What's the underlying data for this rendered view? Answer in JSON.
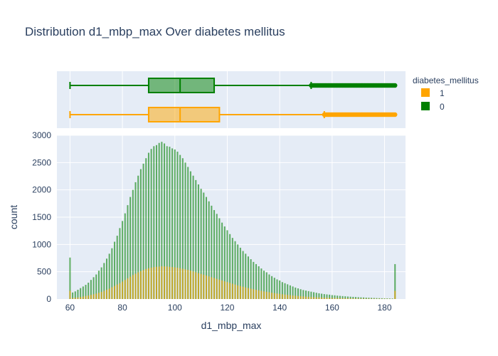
{
  "title": "Distribution d1_mbp_max Over diabetes mellitus",
  "legend": {
    "title": "diabetes_mellitus",
    "items": [
      {
        "label": "1",
        "color": "#FFA500"
      },
      {
        "label": "0",
        "color": "#008000"
      }
    ]
  },
  "chart_data": [
    {
      "type": "box",
      "orientation": "horizontal",
      "series": [
        {
          "name": "0",
          "color": "#008000",
          "whisker_low": 60,
          "q1": 90,
          "median": 102,
          "q3": 115,
          "whisker_high": 152,
          "outliers_range": [
            152,
            184
          ]
        },
        {
          "name": "1",
          "color": "#FFA500",
          "whisker_low": 60,
          "q1": 90,
          "median": 102,
          "q3": 117,
          "whisker_high": 157,
          "outliers_range": [
            157,
            184
          ]
        }
      ],
      "xlim": [
        55,
        188
      ]
    },
    {
      "type": "bar",
      "mode": "overlay",
      "xlabel": "d1_mbp_max",
      "ylabel": "count",
      "xlim": [
        55,
        188
      ],
      "ylim": [
        0,
        3000
      ],
      "xticks": [
        60,
        80,
        100,
        120,
        140,
        160,
        180
      ],
      "yticks": [
        0,
        500,
        1000,
        1500,
        2000,
        2500,
        3000
      ],
      "grid": true,
      "x": [
        60,
        61,
        62,
        63,
        64,
        65,
        66,
        67,
        68,
        69,
        70,
        71,
        72,
        73,
        74,
        75,
        76,
        77,
        78,
        79,
        80,
        81,
        82,
        83,
        84,
        85,
        86,
        87,
        88,
        89,
        90,
        91,
        92,
        93,
        94,
        95,
        96,
        97,
        98,
        99,
        100,
        101,
        102,
        103,
        104,
        105,
        106,
        107,
        108,
        109,
        110,
        111,
        112,
        113,
        114,
        115,
        116,
        117,
        118,
        119,
        120,
        121,
        122,
        123,
        124,
        125,
        126,
        127,
        128,
        129,
        130,
        131,
        132,
        133,
        134,
        135,
        136,
        137,
        138,
        139,
        140,
        141,
        142,
        143,
        144,
        145,
        146,
        147,
        148,
        149,
        150,
        151,
        152,
        153,
        154,
        155,
        156,
        157,
        158,
        159,
        160,
        161,
        162,
        163,
        164,
        165,
        166,
        167,
        168,
        169,
        170,
        171,
        172,
        173,
        174,
        175,
        176,
        177,
        178,
        179,
        180,
        181,
        182,
        183,
        184
      ],
      "series": [
        {
          "name": "0",
          "color": "#008000",
          "values": [
            760,
            120,
            140,
            170,
            200,
            230,
            260,
            300,
            350,
            400,
            450,
            520,
            580,
            660,
            740,
            830,
            930,
            1050,
            1160,
            1300,
            1430,
            1570,
            1720,
            1870,
            2000,
            2140,
            2260,
            2380,
            2480,
            2580,
            2680,
            2750,
            2800,
            2820,
            2860,
            2880,
            2850,
            2800,
            2790,
            2760,
            2740,
            2700,
            2640,
            2580,
            2500,
            2420,
            2340,
            2260,
            2180,
            2100,
            2020,
            1950,
            1870,
            1790,
            1710,
            1630,
            1560,
            1480,
            1400,
            1330,
            1260,
            1190,
            1120,
            1060,
            1000,
            940,
            880,
            830,
            780,
            730,
            680,
            640,
            600,
            560,
            520,
            490,
            450,
            420,
            390,
            360,
            340,
            310,
            290,
            270,
            250,
            230,
            210,
            195,
            180,
            165,
            155,
            145,
            135,
            125,
            115,
            105,
            98,
            90,
            85,
            80,
            72,
            68,
            62,
            58,
            54,
            50,
            46,
            43,
            40,
            37,
            34,
            31,
            29,
            26,
            24,
            22,
            20,
            18,
            16,
            15,
            14,
            12,
            11,
            10,
            640
          ]
        },
        {
          "name": "1",
          "color": "#FFA500",
          "values": [
            150,
            20,
            25,
            30,
            38,
            45,
            55,
            65,
            75,
            88,
            100,
            115,
            130,
            150,
            170,
            190,
            215,
            240,
            265,
            290,
            320,
            350,
            380,
            410,
            440,
            465,
            490,
            510,
            530,
            550,
            565,
            575,
            585,
            590,
            595,
            600,
            598,
            595,
            590,
            585,
            580,
            575,
            565,
            555,
            545,
            535,
            520,
            505,
            490,
            475,
            460,
            445,
            430,
            415,
            400,
            385,
            370,
            355,
            340,
            325,
            310,
            295,
            280,
            265,
            250,
            238,
            225,
            212,
            200,
            190,
            180,
            170,
            160,
            150,
            140,
            132,
            124,
            116,
            108,
            100,
            94,
            88,
            82,
            76,
            70,
            65,
            60,
            56,
            52,
            48,
            44,
            41,
            38,
            35,
            32,
            30,
            28,
            26,
            24,
            22,
            20,
            19,
            18,
            17,
            16,
            15,
            14,
            13,
            12,
            11,
            10,
            9,
            9,
            8,
            8,
            7,
            7,
            6,
            6,
            5,
            5,
            5,
            4,
            4,
            150
          ]
        }
      ]
    }
  ]
}
